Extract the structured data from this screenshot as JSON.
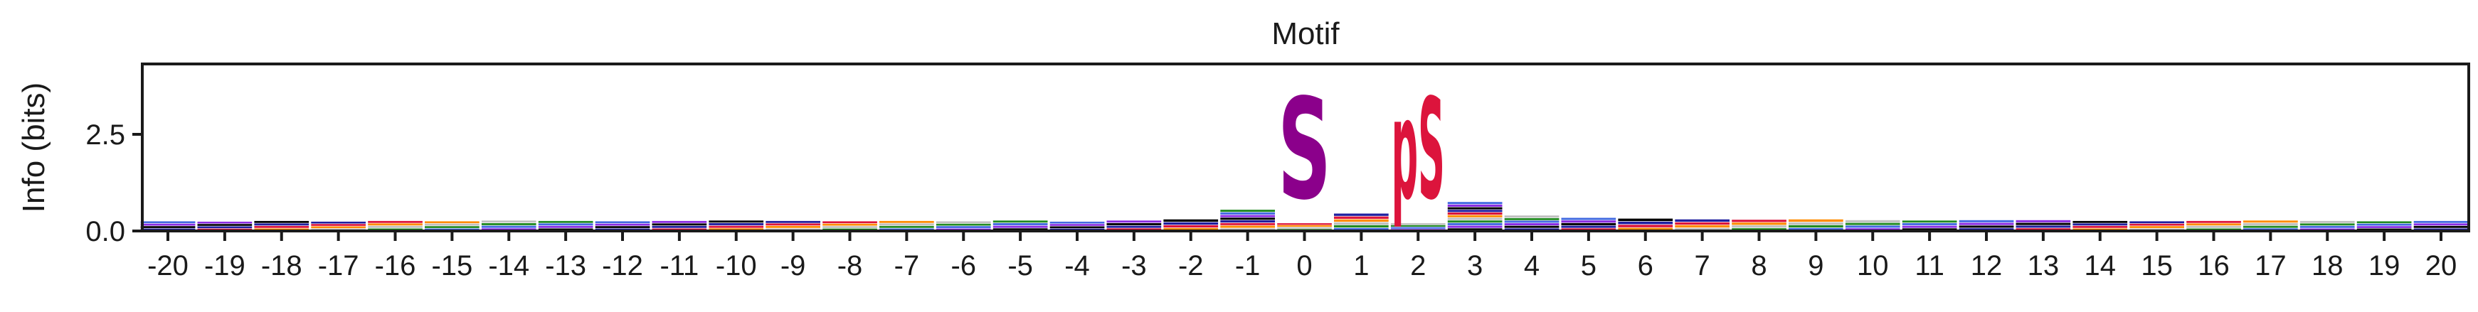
{
  "chart_data": {
    "type": "sequence-logo",
    "title": "Motif",
    "xlabel": "",
    "ylabel": "Info (bits)",
    "ylim": [
      0,
      4.32
    ],
    "yticks": [
      "0.0",
      "2.5"
    ],
    "ytick_values": [
      0,
      2.5
    ],
    "positions": [
      -20,
      -19,
      -18,
      -17,
      -16,
      -15,
      -14,
      -13,
      -12,
      -11,
      -10,
      -9,
      -8,
      -7,
      -6,
      -5,
      -4,
      -3,
      -2,
      -1,
      0,
      1,
      2,
      3,
      4,
      5,
      6,
      7,
      8,
      9,
      10,
      11,
      12,
      13,
      14,
      15,
      16,
      17,
      18,
      19,
      20
    ],
    "xtick_labels": [
      "-20",
      "-19",
      "-18",
      "-17",
      "-16",
      "-15",
      "-14",
      "-13",
      "-12",
      "-11",
      "-10",
      "-9",
      "-8",
      "-7",
      "-6",
      "-5",
      "-4",
      "-3",
      "-2",
      "-1",
      "0",
      "1",
      "2",
      "3",
      "4",
      "5",
      "6",
      "7",
      "8",
      "9",
      "10",
      "11",
      "12",
      "13",
      "14",
      "15",
      "16",
      "17",
      "18",
      "19",
      "20"
    ],
    "background_info": [
      0.25,
      0.24,
      0.26,
      0.24,
      0.26,
      0.25,
      0.27,
      0.26,
      0.25,
      0.26,
      0.27,
      0.26,
      0.25,
      0.26,
      0.25,
      0.27,
      0.24,
      0.27,
      0.3,
      0.55,
      0.2,
      0.45,
      0.2,
      0.75,
      0.4,
      0.34,
      0.32,
      0.3,
      0.29,
      0.3,
      0.28,
      0.27,
      0.28,
      0.28,
      0.26,
      0.25,
      0.26,
      0.27,
      0.26,
      0.25,
      0.26
    ],
    "background_colors": [
      "#1f1fa0",
      "#c0c0c0",
      "#8a2be2",
      "#dc143c",
      "#228b22",
      "#000000",
      "#ff8c00",
      "#4169e1"
    ],
    "dominant_letters": [
      {
        "position": 0,
        "letter": "S",
        "info": 4.2,
        "color": "#8b008b"
      },
      {
        "position": 2,
        "letter": "pS",
        "info": 4.2,
        "color": "#dc143c"
      }
    ]
  }
}
